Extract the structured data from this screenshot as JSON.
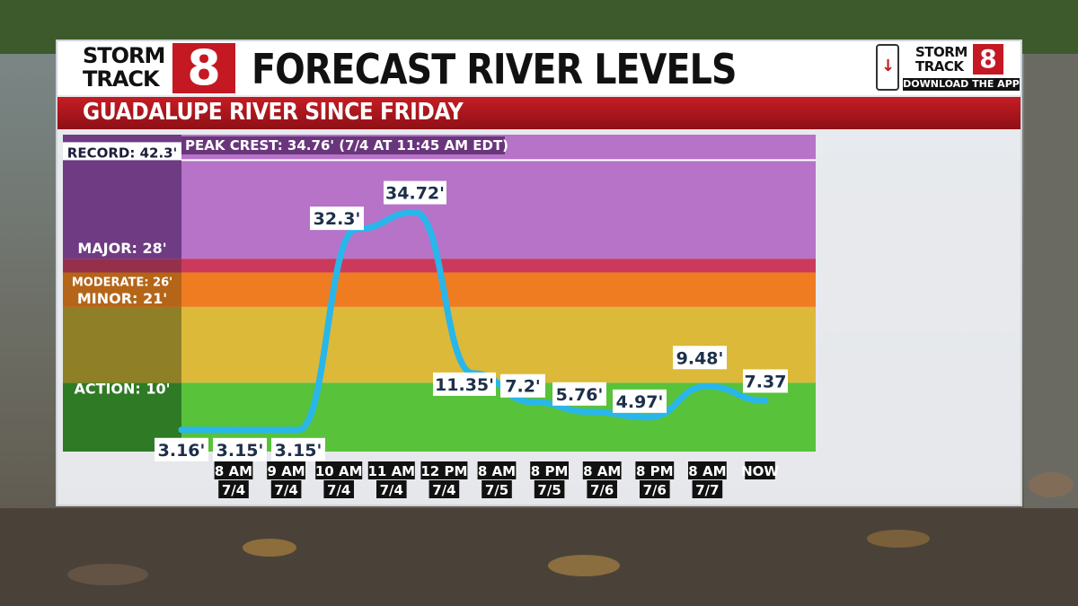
{
  "header": {
    "logo_line1": "STORM",
    "logo_line2": "TRACK",
    "logo_number": "8",
    "title": "FORECAST RIVER LEVELS",
    "subtitle": "GUADALUPE RIVER SINCE FRIDAY",
    "app_line1": "STORM",
    "app_line2": "TRACK",
    "app_number": "8",
    "app_cta": "DOWNLOAD THE APP"
  },
  "chart_data": {
    "type": "line",
    "title": "FORECAST RIVER LEVELS",
    "subtitle": "GUADALUPE RIVER SINCE FRIDAY",
    "annotation": "PEAK CREST: 34.76' (7/4 AT 11:45 AM EDT)",
    "xlabel": "",
    "ylabel": "",
    "categories": [
      [
        "8 AM",
        "7/4"
      ],
      [
        "9 AM",
        "7/4"
      ],
      [
        "10 AM",
        "7/4"
      ],
      [
        "11 AM",
        "7/4"
      ],
      [
        "12 PM",
        "7/4"
      ],
      [
        "8 AM",
        "7/5"
      ],
      [
        "8 PM",
        "7/5"
      ],
      [
        "8 AM",
        "7/6"
      ],
      [
        "8 PM",
        "7/6"
      ],
      [
        "8 AM",
        "7/7"
      ],
      [
        "NOW",
        ""
      ]
    ],
    "x": [
      0,
      1,
      2,
      3,
      4,
      5,
      6,
      7,
      8,
      9,
      10
    ],
    "series": [
      {
        "values": [
          3.16,
          3.15,
          3.15,
          32.3,
          34.72,
          11.35,
          7.2,
          5.76,
          4.97,
          9.48,
          7.37
        ],
        "labels": [
          "3.16'",
          "3.15'",
          "3.15'",
          "32.3'",
          "34.72'",
          "11.35'",
          "7.2'",
          "5.76'",
          "4.97'",
          "9.48'",
          "7.37"
        ],
        "color": "#29b6ea"
      }
    ],
    "ylim": [
      0,
      46
    ],
    "record": {
      "value": 42.3,
      "label": "RECORD: 42.3'"
    },
    "stages": [
      {
        "label": "ACTION: 10'",
        "from": 0,
        "to": 10,
        "color": "#58c23a",
        "label_color": "#2f7a25"
      },
      {
        "label": "MINOR: 21'",
        "from": 10,
        "to": 21,
        "color": "#dcb938",
        "label_color": "#8f8027"
      },
      {
        "label": "MODERATE: 26'",
        "from": 21,
        "to": 26,
        "color": "#f07c21",
        "label_color": "#b56518"
      },
      {
        "label": "MAJOR: 28'",
        "from": 26,
        "to": 28,
        "color": "#cb3a5a",
        "label_color": "#96304a"
      },
      {
        "label": "",
        "from": 28,
        "to": 46,
        "color": "#b673c8",
        "label_color": "#6f3b82"
      }
    ],
    "grid": false,
    "legend": "none"
  }
}
